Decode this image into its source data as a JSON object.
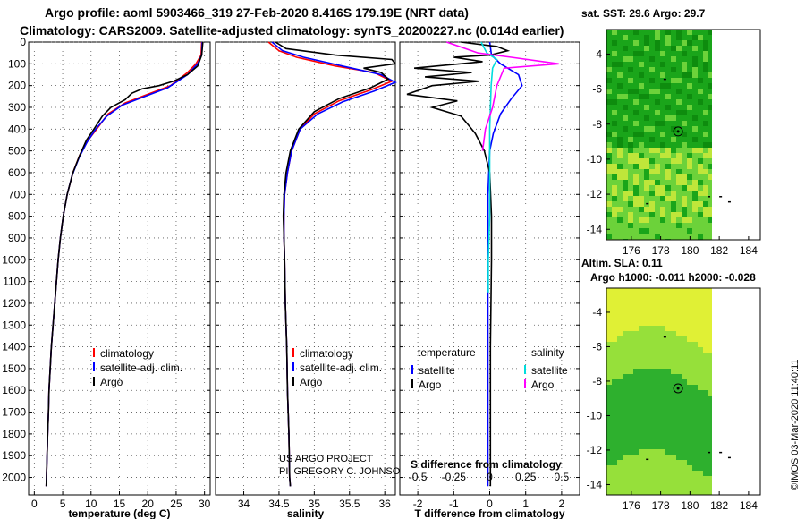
{
  "title_line1": "Argo profile: aoml 5903466_319 27-Feb-2020 8.416S 179.19E (NRT data)",
  "title_line2": "Climatology: CARS2009. Satellite-adjusted climatology: synTS_20200227.nc (0.014d earlier)",
  "chart_data": [
    {
      "type": "line",
      "id": "temperature",
      "xlabel": "temperature (deg C)",
      "ylabel": "",
      "xlim": [
        -1,
        31
      ],
      "xticks": [
        0,
        5,
        10,
        15,
        20,
        25,
        30
      ],
      "ylim": [
        2080,
        0
      ],
      "yticks": [
        0,
        100,
        200,
        300,
        400,
        500,
        600,
        700,
        800,
        900,
        1000,
        1100,
        1200,
        1300,
        1400,
        1500,
        1600,
        1700,
        1800,
        1900,
        2000
      ],
      "grid": true,
      "legend": [
        "climatology",
        "satellite-adj. clim.",
        "Argo"
      ],
      "series": [
        {
          "name": "climatology",
          "color": "#ff0000",
          "points": [
            [
              29.5,
              0
            ],
            [
              29.4,
              60
            ],
            [
              28.5,
              100
            ],
            [
              27,
              140
            ],
            [
              24,
              200
            ],
            [
              20,
              240
            ],
            [
              16,
              280
            ],
            [
              13,
              330
            ],
            [
              11,
              400
            ],
            [
              9.5,
              450
            ],
            [
              8,
              520
            ],
            [
              6.8,
              600
            ],
            [
              5.8,
              700
            ],
            [
              5.1,
              800
            ],
            [
              4.6,
              900
            ],
            [
              4.2,
              1000
            ],
            [
              3.9,
              1100
            ],
            [
              3.6,
              1200
            ],
            [
              3.3,
              1300
            ],
            [
              3.0,
              1400
            ],
            [
              2.8,
              1500
            ],
            [
              2.6,
              1600
            ],
            [
              2.5,
              1700
            ],
            [
              2.35,
              1800
            ],
            [
              2.25,
              1900
            ],
            [
              2.15,
              2000
            ],
            [
              2.1,
              2040
            ]
          ]
        },
        {
          "name": "satellite-adj. clim.",
          "color": "#0000ff",
          "points": [
            [
              29.6,
              0
            ],
            [
              29.5,
              60
            ],
            [
              28.8,
              100
            ],
            [
              27,
              150
            ],
            [
              23.5,
              210
            ],
            [
              19.5,
              250
            ],
            [
              15.5,
              290
            ],
            [
              12.8,
              340
            ],
            [
              10.8,
              400
            ],
            [
              9.3,
              460
            ],
            [
              7.9,
              530
            ],
            [
              6.7,
              610
            ],
            [
              5.8,
              700
            ],
            [
              5.1,
              800
            ],
            [
              4.6,
              900
            ],
            [
              4.2,
              1000
            ],
            [
              3.9,
              1100
            ],
            [
              3.6,
              1200
            ],
            [
              3.3,
              1300
            ],
            [
              3.0,
              1400
            ],
            [
              2.8,
              1500
            ],
            [
              2.6,
              1600
            ],
            [
              2.5,
              1700
            ],
            [
              2.35,
              1800
            ],
            [
              2.25,
              1900
            ],
            [
              2.15,
              2000
            ],
            [
              2.1,
              2040
            ]
          ]
        },
        {
          "name": "Argo",
          "color": "#000000",
          "points": [
            [
              29.7,
              0
            ],
            [
              29.5,
              60
            ],
            [
              28.8,
              110
            ],
            [
              27,
              150
            ],
            [
              24.5,
              180
            ],
            [
              22,
              200
            ],
            [
              19,
              215
            ],
            [
              17.2,
              235
            ],
            [
              16,
              265
            ],
            [
              13.5,
              300
            ],
            [
              12,
              340
            ],
            [
              10.5,
              400
            ],
            [
              9.2,
              450
            ],
            [
              8,
              520
            ],
            [
              6.8,
              600
            ],
            [
              5.8,
              700
            ],
            [
              5.1,
              800
            ],
            [
              4.6,
              900
            ],
            [
              4.2,
              1000
            ],
            [
              3.9,
              1100
            ],
            [
              3.6,
              1200
            ],
            [
              3.3,
              1300
            ],
            [
              3.0,
              1400
            ],
            [
              2.8,
              1500
            ],
            [
              2.6,
              1600
            ],
            [
              2.5,
              1700
            ],
            [
              2.35,
              1800
            ],
            [
              2.25,
              1900
            ],
            [
              2.15,
              2000
            ],
            [
              2.1,
              2040
            ]
          ]
        }
      ]
    },
    {
      "type": "line",
      "id": "salinity",
      "xlabel": "salinity",
      "xlim": [
        33.6,
        36.15
      ],
      "xticks": [
        34,
        34.5,
        35,
        35.5,
        36
      ],
      "ylim": [
        2080,
        0
      ],
      "grid": true,
      "legend": [
        "climatology",
        "satellite-adj. clim.",
        "Argo"
      ],
      "annotation": [
        "US ARGO PROJECT",
        "PI: GREGORY C. JOHNSON"
      ],
      "series": [
        {
          "name": "climatology",
          "color": "#ff0000",
          "points": [
            [
              34.35,
              0
            ],
            [
              34.5,
              40
            ],
            [
              34.75,
              70
            ],
            [
              35.3,
              110
            ],
            [
              35.85,
              140
            ],
            [
              36.1,
              180
            ],
            [
              35.8,
              220
            ],
            [
              35.35,
              270
            ],
            [
              35.0,
              330
            ],
            [
              34.8,
              400
            ],
            [
              34.68,
              500
            ],
            [
              34.62,
              600
            ],
            [
              34.58,
              700
            ],
            [
              34.57,
              800
            ],
            [
              34.57,
              900
            ],
            [
              34.58,
              1000
            ],
            [
              34.59,
              1200
            ],
            [
              34.61,
              1400
            ],
            [
              34.62,
              1600
            ],
            [
              34.64,
              1800
            ],
            [
              34.65,
              2000
            ],
            [
              34.66,
              2040
            ]
          ]
        },
        {
          "name": "satellite-adj. clim.",
          "color": "#0000ff",
          "points": [
            [
              34.4,
              0
            ],
            [
              34.55,
              40
            ],
            [
              34.85,
              70
            ],
            [
              35.4,
              110
            ],
            [
              35.95,
              150
            ],
            [
              36.15,
              185
            ],
            [
              35.85,
              225
            ],
            [
              35.4,
              275
            ],
            [
              35.05,
              330
            ],
            [
              34.8,
              400
            ],
            [
              34.68,
              500
            ],
            [
              34.62,
              600
            ],
            [
              34.58,
              700
            ],
            [
              34.57,
              800
            ],
            [
              34.57,
              900
            ],
            [
              34.58,
              1000
            ],
            [
              34.59,
              1200
            ],
            [
              34.61,
              1400
            ],
            [
              34.62,
              1600
            ],
            [
              34.64,
              1800
            ],
            [
              34.65,
              2000
            ],
            [
              34.66,
              2040
            ]
          ]
        },
        {
          "name": "Argo",
          "color": "#000000",
          "points": [
            [
              34.45,
              0
            ],
            [
              34.6,
              30
            ],
            [
              35.3,
              60
            ],
            [
              36.1,
              80
            ],
            [
              36.15,
              100
            ],
            [
              35.7,
              120
            ],
            [
              35.95,
              140
            ],
            [
              36.05,
              170
            ],
            [
              35.8,
              210
            ],
            [
              35.35,
              260
            ],
            [
              35.0,
              320
            ],
            [
              34.78,
              400
            ],
            [
              34.66,
              500
            ],
            [
              34.6,
              600
            ],
            [
              34.57,
              700
            ],
            [
              34.56,
              800
            ],
            [
              34.57,
              900
            ],
            [
              34.58,
              1000
            ],
            [
              34.59,
              1200
            ],
            [
              34.61,
              1400
            ],
            [
              34.62,
              1600
            ],
            [
              34.64,
              1800
            ],
            [
              34.65,
              2000
            ],
            [
              34.66,
              2040
            ]
          ]
        }
      ]
    },
    {
      "type": "line",
      "id": "difference",
      "xlabel": "T difference from climatology",
      "xlabel2": "S difference from climatology",
      "xlim": [
        -2.5,
        2.5
      ],
      "xticks": [
        -2,
        -1,
        0,
        1,
        2
      ],
      "xticks2": [
        "-0.5",
        "-0.25",
        "0",
        "0.25",
        "0.5"
      ],
      "xticks2_values": [
        -0.5,
        -0.25,
        0,
        0.25,
        0.5
      ],
      "xlim2": [
        -0.625,
        0.625
      ],
      "ylim": [
        2080,
        0
      ],
      "grid": true,
      "legend_temperature": [
        "temperature",
        "satellite",
        "Argo"
      ],
      "legend_salinity": [
        "salinity",
        "satellite",
        "Argo"
      ],
      "series": [
        {
          "name": "T satellite",
          "color": "#0000ff",
          "points": [
            [
              0,
              0
            ],
            [
              0.05,
              60
            ],
            [
              0.3,
              100
            ],
            [
              0.8,
              150
            ],
            [
              0.9,
              200
            ],
            [
              0.6,
              260
            ],
            [
              0.3,
              330
            ],
            [
              0.1,
              420
            ],
            [
              0,
              500
            ],
            [
              -0.05,
              700
            ],
            [
              -0.05,
              1000
            ],
            [
              -0.05,
              1400
            ],
            [
              -0.05,
              2040
            ]
          ]
        },
        {
          "name": "T Argo",
          "color": "#000000",
          "points": [
            [
              -0.8,
              0
            ],
            [
              0.2,
              20
            ],
            [
              0.5,
              40
            ],
            [
              0,
              60
            ],
            [
              -1.0,
              70
            ],
            [
              -0.2,
              90
            ],
            [
              -2.1,
              120
            ],
            [
              -0.5,
              140
            ],
            [
              -1.8,
              160
            ],
            [
              -0.3,
              180
            ],
            [
              -1.6,
              200
            ],
            [
              -2.3,
              240
            ],
            [
              -0.9,
              270
            ],
            [
              -1.6,
              300
            ],
            [
              -0.8,
              340
            ],
            [
              -0.6,
              380
            ],
            [
              -0.4,
              420
            ],
            [
              -0.15,
              500
            ],
            [
              0,
              600
            ],
            [
              0.05,
              800
            ],
            [
              0.05,
              1000
            ],
            [
              0.02,
              1400
            ],
            [
              0.02,
              2040
            ]
          ]
        },
        {
          "name": "S satellite",
          "color": "#00dddd",
          "points": [
            [
              -0.06,
              0
            ],
            [
              -0.02,
              50
            ],
            [
              0.05,
              80
            ],
            [
              0.02,
              120
            ],
            [
              0.01,
              200
            ],
            [
              0,
              400
            ],
            [
              0,
              600
            ],
            [
              0,
              800
            ],
            [
              -0.01,
              1000
            ],
            [
              -0.01,
              1150
            ]
          ]
        },
        {
          "name": "S Argo",
          "color": "#ff00ff",
          "points": [
            [
              -0.3,
              0
            ],
            [
              -0.08,
              50
            ],
            [
              0.15,
              70
            ],
            [
              0.48,
              100
            ],
            [
              0.1,
              120
            ],
            [
              0.05,
              200
            ],
            [
              0.02,
              300
            ],
            [
              -0.03,
              400
            ],
            [
              -0.05,
              500
            ]
          ]
        }
      ]
    }
  ],
  "maps": [
    {
      "id": "sst-map",
      "title": "sat. SST: 29.6 Argo: 29.7",
      "xticks": [
        "176",
        "178",
        "180",
        "182",
        "184"
      ],
      "yticks": [
        "-4",
        "-6",
        "-8",
        "-10",
        "-12",
        "-14"
      ],
      "colors": [
        "#1aa51a",
        "#6cd23a",
        "#bfe63a"
      ]
    },
    {
      "id": "sla-map",
      "title_line1": "Altim. SLA: 0.11",
      "title_line2": "Argo h1000: -0.011 h2000: -0.028",
      "xticks": [
        "176",
        "178",
        "180",
        "182",
        "184"
      ],
      "yticks": [
        "-4",
        "-6",
        "-8",
        "-10",
        "-12",
        "-14"
      ],
      "colors": [
        "#2eb02e",
        "#96e03a",
        "#e0f035"
      ]
    }
  ],
  "stamp": "©IMOS 03-Mar-2020 11:40:11"
}
